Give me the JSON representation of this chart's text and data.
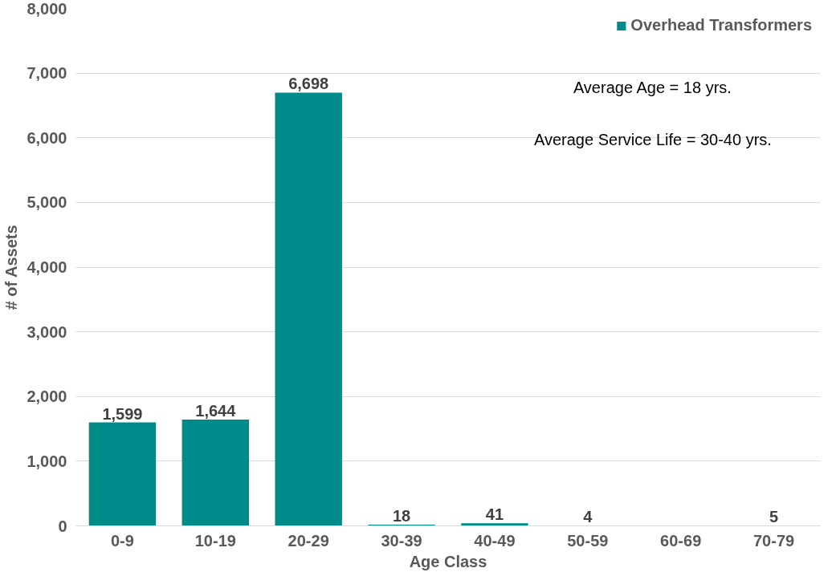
{
  "chart_data": {
    "type": "bar",
    "xlabel": "Age Class",
    "ylabel": "# of Assets",
    "categories": [
      "0-9",
      "10-19",
      "20-29",
      "30-39",
      "40-49",
      "50-59",
      "60-69",
      "70-79"
    ],
    "series": [
      {
        "name": "Overhead Transformers",
        "color": "#008b8b",
        "values": [
          1599,
          1644,
          6698,
          18,
          41,
          4,
          null,
          5
        ]
      }
    ],
    "ylim": [
      0,
      8000
    ],
    "yticks": [
      {
        "value": 0,
        "label": "0"
      },
      {
        "value": 1000,
        "label": "1,000"
      },
      {
        "value": 2000,
        "label": "2,000"
      },
      {
        "value": 3000,
        "label": "3,000"
      },
      {
        "value": 4000,
        "label": "4,000"
      },
      {
        "value": 5000,
        "label": "5,000"
      },
      {
        "value": 6000,
        "label": "6,000"
      },
      {
        "value": 7000,
        "label": "7,000"
      },
      {
        "value": 8000,
        "label": "8,000"
      }
    ],
    "value_labels": [
      "1,599",
      "1,644",
      "6,698",
      "18",
      "41",
      "4",
      null,
      "5"
    ],
    "grid": "y",
    "legend": "top right",
    "annotations": [
      "Average Age = 18 yrs.",
      "Average Service Life = 30-40 yrs."
    ]
  }
}
